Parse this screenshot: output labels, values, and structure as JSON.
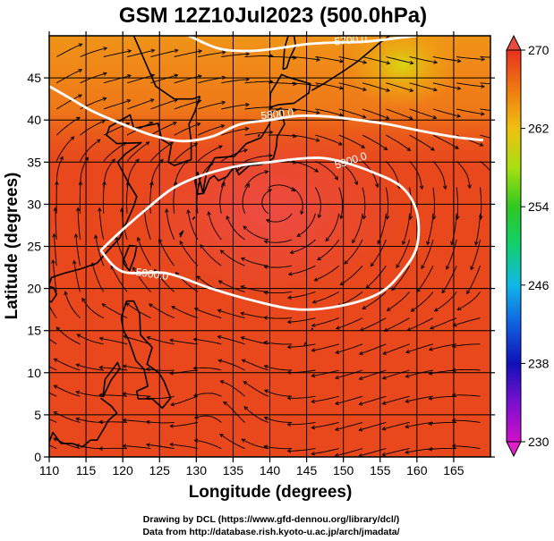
{
  "chart_data": {
    "type": "heatmap",
    "title": "GSM 12Z10Jul2023 (500.0hPa)",
    "xlabel": "Longitude (degrees)",
    "ylabel": "Latitude  (degrees)",
    "xlim": [
      110,
      170
    ],
    "ylim": [
      0,
      50
    ],
    "xticks": [
      110,
      115,
      120,
      125,
      130,
      135,
      140,
      145,
      150,
      155,
      160,
      165
    ],
    "yticks": [
      0,
      5,
      10,
      15,
      20,
      25,
      30,
      35,
      40,
      45
    ],
    "grid": true,
    "colorbar": {
      "min": 230,
      "max": 270,
      "ticks": [
        230,
        238,
        246,
        254,
        262,
        270
      ],
      "placement": "right"
    },
    "field_samples": [
      {
        "lon": 115,
        "lat": 45,
        "value": 263
      },
      {
        "lon": 125,
        "lat": 45,
        "value": 263
      },
      {
        "lon": 140,
        "lat": 45,
        "value": 262
      },
      {
        "lon": 150,
        "lat": 45,
        "value": 262
      },
      {
        "lon": 158,
        "lat": 46,
        "value": 258
      },
      {
        "lon": 165,
        "lat": 45,
        "value": 261
      },
      {
        "lon": 130,
        "lat": 38,
        "value": 264
      },
      {
        "lon": 150,
        "lat": 38,
        "value": 264
      },
      {
        "lon": 165,
        "lat": 38,
        "value": 264
      },
      {
        "lon": 140,
        "lat": 30,
        "value": 267
      },
      {
        "lon": 120,
        "lat": 25,
        "value": 267
      },
      {
        "lon": 160,
        "lat": 25,
        "value": 266
      },
      {
        "lon": 140,
        "lat": 15,
        "value": 266
      },
      {
        "lon": 120,
        "lat": 10,
        "value": 266
      },
      {
        "lon": 160,
        "lat": 10,
        "value": 266
      },
      {
        "lon": 140,
        "lat": 3,
        "value": 266
      }
    ],
    "contours": [
      {
        "label": "5800.0",
        "points": [
          [
            110,
            44
          ],
          [
            113,
            42.5
          ],
          [
            116,
            41
          ],
          [
            120,
            39.5
          ],
          [
            124,
            38.2
          ],
          [
            128,
            37.5
          ],
          [
            132,
            38
          ],
          [
            136,
            39.5
          ],
          [
            140,
            40
          ],
          [
            144,
            40.5
          ],
          [
            148,
            40.4
          ],
          [
            152,
            40
          ],
          [
            156,
            39.5
          ],
          [
            160,
            38.8
          ],
          [
            165,
            38
          ],
          [
            169,
            37.6
          ]
        ]
      },
      {
        "label": "5900.0",
        "points": [
          [
            117,
            24.5
          ],
          [
            120,
            27
          ],
          [
            124,
            30
          ],
          [
            127,
            32
          ],
          [
            131,
            33.5
          ],
          [
            136,
            34.6
          ],
          [
            140,
            35
          ],
          [
            144,
            35.4
          ],
          [
            147,
            35.5
          ],
          [
            150,
            35
          ],
          [
            154,
            33.8
          ],
          [
            158,
            32
          ],
          [
            160,
            29
          ],
          [
            160,
            25
          ],
          [
            158,
            22
          ],
          [
            155,
            19.5
          ],
          [
            150,
            18
          ],
          [
            144,
            17.5
          ],
          [
            138,
            18.5
          ],
          [
            132,
            20
          ],
          [
            126,
            21.8
          ],
          [
            120,
            22
          ],
          [
            117,
            24.5
          ]
        ]
      },
      {
        "label": "5700.0",
        "points": [
          [
            129,
            50
          ],
          [
            133,
            48.5
          ],
          [
            137,
            48.2
          ],
          [
            141,
            48.5
          ],
          [
            145,
            49
          ],
          [
            149,
            49.2
          ],
          [
            153,
            49.3
          ],
          [
            157,
            49.7
          ],
          [
            160,
            50
          ]
        ]
      }
    ],
    "colors": {
      "field_main": "#E8481C",
      "field_warm": "#EE4A2E",
      "field_north": "#F07A18",
      "field_cool": "#EEA010",
      "field_cold": "#D6D80C",
      "contour": "#ffffff",
      "streamline": "#000000",
      "coastline": "#000000"
    }
  },
  "credits": {
    "line1": "Drawing by DCL (https://www.gfd-dennou.org/library/dcl/)",
    "line2": "Data from http://database.rish.kyoto-u.ac.jp/arch/jmadata/"
  }
}
